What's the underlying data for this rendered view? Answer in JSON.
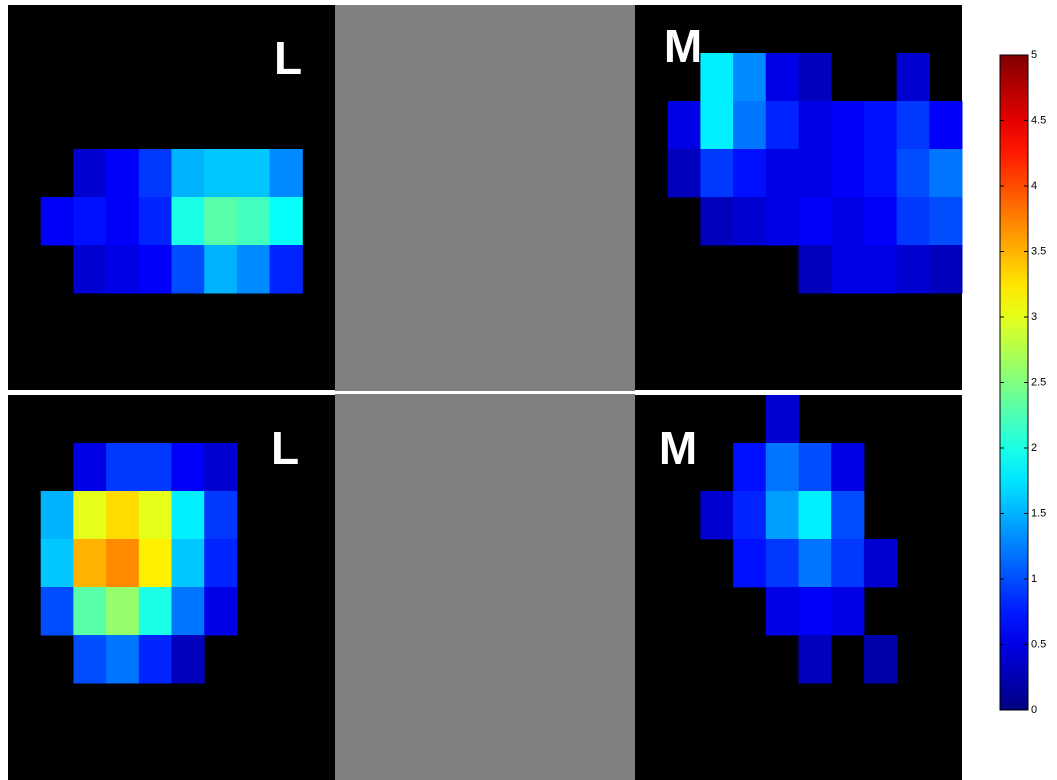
{
  "chart_data": {
    "type": "heatmap",
    "zlim": [
      0,
      5
    ],
    "zticks": [
      0,
      0.5,
      1,
      1.5,
      2,
      2.5,
      3,
      3.5,
      4,
      4.5,
      5
    ],
    "panels": [
      {
        "label": "L",
        "z": [
          [
            null,
            null,
            null,
            null,
            null,
            null,
            null,
            null,
            null,
            null
          ],
          [
            null,
            null,
            null,
            null,
            null,
            null,
            null,
            null,
            null,
            null
          ],
          [
            null,
            null,
            null,
            null,
            null,
            null,
            null,
            null,
            null,
            null
          ],
          [
            null,
            null,
            0.4,
            0.6,
            0.9,
            1.5,
            1.6,
            1.6,
            1.3,
            null
          ],
          [
            null,
            0.6,
            0.7,
            0.6,
            0.8,
            2.0,
            2.3,
            2.2,
            1.9,
            null
          ],
          [
            null,
            null,
            0.4,
            0.5,
            0.6,
            1.0,
            1.5,
            1.3,
            0.8,
            null
          ],
          [
            null,
            null,
            null,
            null,
            null,
            null,
            null,
            null,
            null,
            null
          ],
          [
            null,
            null,
            null,
            null,
            null,
            null,
            null,
            null,
            null,
            null
          ]
        ]
      },
      {
        "label": "M",
        "z": [
          [
            null,
            null,
            null,
            null,
            null,
            null,
            null,
            null,
            null,
            null
          ],
          [
            null,
            null,
            1.8,
            1.3,
            0.5,
            0.3,
            null,
            null,
            0.4,
            null
          ],
          [
            null,
            0.5,
            1.8,
            1.2,
            0.8,
            0.5,
            0.6,
            0.7,
            0.9,
            0.6
          ],
          [
            null,
            0.3,
            0.9,
            0.7,
            0.5,
            0.5,
            0.6,
            0.7,
            1.0,
            1.2
          ],
          [
            null,
            null,
            0.3,
            0.4,
            0.5,
            0.6,
            0.5,
            0.6,
            0.9,
            1.0
          ],
          [
            null,
            null,
            null,
            null,
            null,
            0.3,
            0.5,
            0.5,
            0.4,
            0.3
          ],
          [
            null,
            null,
            null,
            null,
            null,
            null,
            null,
            null,
            null,
            null
          ],
          [
            null,
            null,
            null,
            null,
            null,
            null,
            null,
            null,
            null,
            null
          ]
        ]
      },
      {
        "label": "L",
        "z": [
          [
            null,
            null,
            null,
            null,
            null,
            null,
            null,
            null,
            null,
            null
          ],
          [
            null,
            null,
            0.5,
            0.9,
            0.9,
            0.6,
            0.4,
            null,
            null,
            null
          ],
          [
            null,
            1.5,
            3.0,
            3.3,
            3.0,
            1.8,
            0.9,
            null,
            null,
            null
          ],
          [
            null,
            1.6,
            3.5,
            3.7,
            3.2,
            1.6,
            0.8,
            null,
            null,
            null
          ],
          [
            null,
            1.0,
            2.3,
            2.6,
            2.0,
            1.2,
            0.5,
            null,
            null,
            null
          ],
          [
            null,
            null,
            1.0,
            1.2,
            0.8,
            0.3,
            null,
            null,
            null,
            null
          ],
          [
            null,
            null,
            null,
            null,
            null,
            null,
            null,
            null,
            null,
            null
          ],
          [
            null,
            null,
            null,
            null,
            null,
            null,
            null,
            null,
            null,
            null
          ]
        ]
      },
      {
        "label": "M",
        "z": [
          [
            null,
            null,
            null,
            null,
            0.4,
            null,
            null,
            null,
            null,
            null
          ],
          [
            null,
            null,
            null,
            0.7,
            1.2,
            1.0,
            0.5,
            null,
            null,
            null
          ],
          [
            null,
            null,
            0.4,
            0.8,
            1.4,
            1.8,
            1.0,
            null,
            null,
            null
          ],
          [
            null,
            null,
            null,
            0.7,
            0.9,
            1.2,
            0.9,
            0.4,
            null,
            null
          ],
          [
            null,
            null,
            null,
            null,
            0.5,
            0.6,
            0.5,
            null,
            null,
            null
          ],
          [
            null,
            null,
            null,
            null,
            null,
            0.3,
            null,
            0.2,
            null,
            null
          ],
          [
            null,
            null,
            null,
            null,
            null,
            null,
            null,
            null,
            null,
            null
          ],
          [
            null,
            null,
            null,
            null,
            null,
            null,
            null,
            null,
            null,
            null
          ]
        ]
      }
    ]
  }
}
